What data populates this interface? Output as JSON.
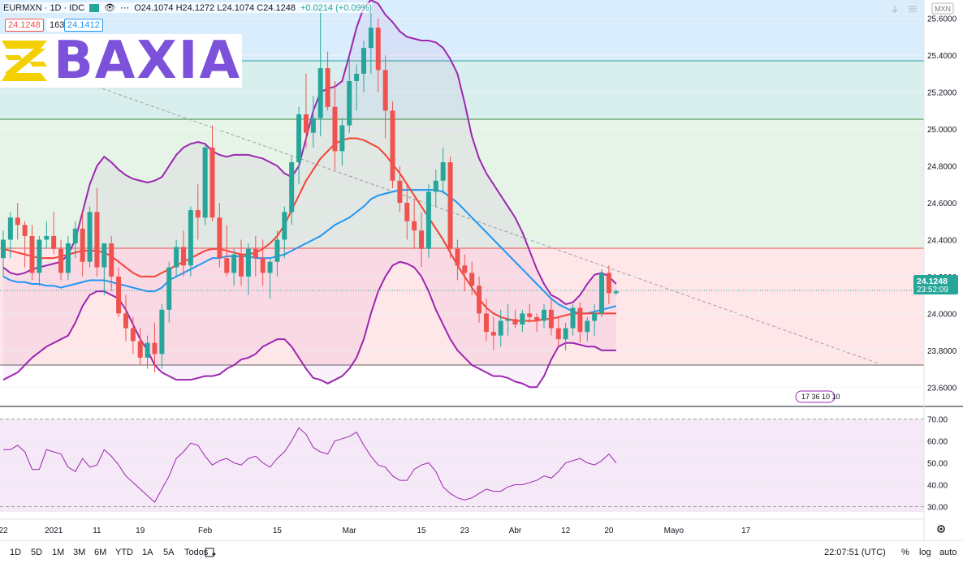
{
  "header": {
    "symbol": "EURMXN · 1D · IDC",
    "ohlc_text": "O24.1074  H24.1272  L24.1074  C24.1248",
    "change": "+0.0214 (+0.09%)",
    "bid": "24.1248",
    "spread": "163",
    "ask": "24.1412",
    "currency": "MXN"
  },
  "logo": {
    "text": "BAXIA",
    "color": "#7b52d9",
    "mark_color": "#f5d000"
  },
  "price_axis": {
    "last_price": "24.1248",
    "countdown": "23:52:09",
    "events": "17 36 10 10"
  },
  "toolbar": {
    "timeframes": [
      "1D",
      "5D",
      "1M",
      "3M",
      "6M",
      "YTD",
      "1A",
      "5A",
      "Todos"
    ],
    "clock": "22:07:51 (UTC)",
    "options": [
      "%",
      "log",
      "auto"
    ]
  },
  "colors": {
    "up": "#26a69a",
    "down": "#ef5350",
    "bollinger": "#9c27b0",
    "sma_fast": "#2196f3",
    "sma_slow": "#f44336",
    "rsi": "#9c27b0",
    "kumo_up": "#4caf50",
    "kumo_down": "#f44336"
  },
  "chart_data": [
    {
      "type": "candlestick",
      "title": "EURMXN · 1D · IDC",
      "ylim": [
        23.5,
        25.7
      ],
      "yticks": [
        "25.6000",
        "25.4000",
        "25.2000",
        "25.0000",
        "24.8000",
        "24.6000",
        "24.4000",
        "24.2000",
        "24.0000",
        "23.8000",
        "23.6000"
      ],
      "xticks": [
        {
          "label": "22",
          "i": 0
        },
        {
          "label": "2021",
          "i": 7
        },
        {
          "label": "11",
          "i": 13
        },
        {
          "label": "19",
          "i": 19
        },
        {
          "label": "Feb",
          "i": 28
        },
        {
          "label": "15",
          "i": 38
        },
        {
          "label": "Mar",
          "i": 48
        },
        {
          "label": "15",
          "i": 58
        },
        {
          "label": "23",
          "i": 64
        },
        {
          "label": "Abr",
          "i": 71
        },
        {
          "label": "12",
          "i": 78
        },
        {
          "label": "20",
          "i": 84
        },
        {
          "label": "Mayo",
          "i": 93
        },
        {
          "label": "17",
          "i": 103
        }
      ],
      "candles": [
        [
          24.3,
          24.45,
          24.2,
          24.4
        ],
        [
          24.4,
          24.55,
          24.3,
          24.52
        ],
        [
          24.52,
          24.6,
          24.4,
          24.48
        ],
        [
          24.48,
          24.5,
          24.25,
          24.42
        ],
        [
          24.42,
          24.48,
          24.18,
          24.22
        ],
        [
          24.22,
          24.42,
          24.15,
          24.4
        ],
        [
          24.4,
          24.5,
          24.35,
          24.42
        ],
        [
          24.42,
          24.55,
          24.32,
          24.35
        ],
        [
          24.35,
          24.4,
          24.18,
          24.22
        ],
        [
          24.22,
          24.42,
          24.18,
          24.38
        ],
        [
          24.38,
          24.5,
          24.3,
          24.46
        ],
        [
          24.46,
          24.55,
          24.2,
          24.28
        ],
        [
          24.28,
          24.58,
          24.25,
          24.55
        ],
        [
          24.55,
          24.68,
          24.2,
          24.25
        ],
        [
          24.25,
          24.38,
          24.1,
          24.38
        ],
        [
          24.38,
          24.42,
          24.12,
          24.2
        ],
        [
          24.2,
          24.25,
          23.98,
          24.0
        ],
        [
          24.0,
          24.1,
          23.85,
          23.92
        ],
        [
          23.92,
          23.98,
          23.78,
          23.85
        ],
        [
          23.85,
          23.92,
          23.72,
          23.76
        ],
        [
          23.76,
          23.88,
          23.7,
          23.84
        ],
        [
          23.84,
          23.95,
          23.68,
          23.78
        ],
        [
          23.78,
          24.05,
          23.7,
          24.02
        ],
        [
          24.02,
          24.28,
          23.95,
          24.25
        ],
        [
          24.25,
          24.4,
          24.2,
          24.36
        ],
        [
          24.36,
          24.45,
          24.2,
          24.26
        ],
        [
          24.26,
          24.58,
          24.2,
          24.56
        ],
        [
          24.56,
          24.7,
          24.4,
          24.52
        ],
        [
          24.52,
          24.92,
          24.48,
          24.9
        ],
        [
          24.9,
          25.02,
          24.5,
          24.52
        ],
        [
          24.52,
          24.6,
          24.25,
          24.3
        ],
        [
          24.3,
          24.48,
          24.2,
          24.22
        ],
        [
          24.22,
          24.35,
          24.15,
          24.32
        ],
        [
          24.32,
          24.4,
          24.15,
          24.2
        ],
        [
          24.2,
          24.38,
          24.1,
          24.35
        ],
        [
          24.35,
          24.42,
          24.2,
          24.3
        ],
        [
          24.3,
          24.4,
          24.15,
          24.22
        ],
        [
          24.22,
          24.3,
          24.08,
          24.28
        ],
        [
          24.28,
          24.45,
          24.2,
          24.4
        ],
        [
          24.4,
          24.58,
          24.3,
          24.55
        ],
        [
          24.55,
          24.85,
          24.48,
          24.82
        ],
        [
          24.82,
          25.12,
          24.7,
          25.08
        ],
        [
          25.08,
          25.3,
          24.9,
          24.98
        ],
        [
          24.98,
          25.18,
          24.9,
          25.06
        ],
        [
          25.06,
          25.64,
          24.96,
          25.33
        ],
        [
          25.33,
          25.42,
          25.1,
          25.12
        ],
        [
          25.12,
          25.26,
          24.78,
          24.88
        ],
        [
          24.88,
          25.06,
          24.8,
          25.02
        ],
        [
          25.02,
          25.4,
          24.98,
          25.26
        ],
        [
          25.26,
          25.35,
          25.1,
          25.3
        ],
        [
          25.3,
          25.48,
          25.2,
          25.44
        ],
        [
          25.44,
          25.66,
          25.3,
          25.55
        ],
        [
          25.55,
          25.6,
          25.2,
          25.32
        ],
        [
          25.32,
          25.4,
          24.95,
          25.1
        ],
        [
          25.1,
          25.15,
          24.68,
          24.72
        ],
        [
          24.72,
          24.8,
          24.55,
          24.6
        ],
        [
          24.6,
          24.7,
          24.4,
          24.5
        ],
        [
          24.5,
          24.62,
          24.35,
          24.45
        ],
        [
          24.45,
          24.55,
          24.25,
          24.35
        ],
        [
          24.35,
          24.7,
          24.3,
          24.66
        ],
        [
          24.66,
          24.78,
          24.58,
          24.72
        ],
        [
          24.72,
          24.9,
          24.65,
          24.82
        ],
        [
          24.82,
          24.85,
          24.3,
          24.35
        ],
        [
          24.35,
          24.4,
          24.18,
          24.26
        ],
        [
          24.26,
          24.32,
          24.12,
          24.22
        ],
        [
          24.22,
          24.28,
          24.1,
          24.15
        ],
        [
          24.15,
          24.2,
          23.95,
          24.0
        ],
        [
          24.0,
          24.08,
          23.85,
          23.9
        ],
        [
          23.9,
          23.98,
          23.8,
          23.88
        ],
        [
          23.88,
          24.02,
          23.82,
          23.96
        ],
        [
          23.96,
          24.05,
          23.88,
          23.97
        ],
        [
          23.97,
          24.02,
          23.92,
          23.94
        ],
        [
          23.94,
          24.02,
          23.9,
          24.0
        ],
        [
          24.0,
          24.05,
          23.95,
          23.98
        ],
        [
          23.98,
          24.0,
          23.9,
          23.96
        ],
        [
          23.96,
          24.05,
          23.92,
          24.02
        ],
        [
          24.02,
          24.08,
          23.88,
          23.92
        ],
        [
          23.92,
          23.98,
          23.82,
          23.86
        ],
        [
          23.86,
          23.95,
          23.8,
          23.92
        ],
        [
          23.92,
          24.05,
          23.88,
          24.03
        ],
        [
          24.03,
          24.06,
          23.84,
          23.9
        ],
        [
          23.9,
          23.98,
          23.85,
          23.96
        ],
        [
          23.96,
          24.05,
          23.88,
          24.0
        ],
        [
          24.0,
          24.24,
          23.98,
          24.22
        ],
        [
          24.22,
          24.26,
          24.05,
          24.11
        ],
        [
          24.11,
          24.13,
          24.1,
          24.12
        ]
      ],
      "series": [
        {
          "name": "bb_upper",
          "values": [
            24.25,
            24.22,
            24.21,
            24.22,
            24.24,
            24.25,
            24.26,
            24.27,
            24.28,
            24.32,
            24.4,
            24.55,
            24.7,
            24.8,
            24.85,
            24.82,
            24.78,
            24.75,
            24.73,
            24.72,
            24.71,
            24.72,
            24.74,
            24.8,
            24.86,
            24.9,
            24.92,
            24.93,
            24.92,
            24.88,
            24.86,
            24.85,
            24.86,
            24.86,
            24.86,
            24.85,
            24.84,
            24.82,
            24.8,
            24.76,
            24.74,
            24.8,
            24.95,
            25.1,
            25.2,
            25.22,
            25.23,
            25.26,
            25.4,
            25.55,
            25.66,
            25.7,
            25.68,
            25.62,
            25.58,
            25.53,
            25.5,
            25.49,
            25.48,
            25.48,
            25.47,
            25.44,
            25.38,
            25.3,
            25.14,
            24.96,
            24.84,
            24.76,
            24.7,
            24.64,
            24.58,
            24.52,
            24.44,
            24.34,
            24.24,
            24.16,
            24.1,
            24.08,
            24.05,
            24.06,
            24.1,
            24.16,
            24.21,
            24.22,
            24.2,
            24.16
          ]
        },
        {
          "name": "bb_lower",
          "values": [
            23.64,
            23.66,
            23.68,
            23.72,
            23.76,
            23.79,
            23.82,
            23.84,
            23.86,
            23.88,
            23.95,
            24.04,
            24.1,
            24.12,
            24.12,
            24.1,
            24.08,
            24.02,
            23.94,
            23.86,
            23.8,
            23.72,
            23.68,
            23.66,
            23.64,
            23.64,
            23.64,
            23.65,
            23.66,
            23.66,
            23.67,
            23.7,
            23.72,
            23.75,
            23.76,
            23.78,
            23.82,
            23.84,
            23.86,
            23.86,
            23.82,
            23.76,
            23.7,
            23.65,
            23.64,
            23.62,
            23.64,
            23.66,
            23.7,
            23.76,
            23.86,
            24.0,
            24.12,
            24.2,
            24.26,
            24.28,
            24.27,
            24.25,
            24.2,
            24.12,
            24.02,
            23.94,
            23.86,
            23.8,
            23.76,
            23.72,
            23.7,
            23.68,
            23.66,
            23.66,
            23.65,
            23.63,
            23.62,
            23.6,
            23.6,
            23.66,
            23.75,
            23.82,
            23.84,
            23.84,
            23.83,
            23.82,
            23.82,
            23.8,
            23.8,
            23.8
          ]
        },
        {
          "name": "sma_fast",
          "values": [
            24.2,
            24.18,
            24.17,
            24.17,
            24.16,
            24.16,
            24.15,
            24.15,
            24.14,
            24.15,
            24.16,
            24.17,
            24.18,
            24.18,
            24.18,
            24.17,
            24.16,
            24.15,
            24.14,
            24.13,
            24.12,
            24.12,
            24.14,
            24.18,
            24.2,
            24.22,
            24.24,
            24.26,
            24.28,
            24.3,
            24.3,
            24.31,
            24.31,
            24.31,
            24.31,
            24.3,
            24.3,
            24.3,
            24.31,
            24.32,
            24.34,
            24.36,
            24.38,
            24.4,
            24.42,
            24.45,
            24.48,
            24.5,
            24.52,
            24.55,
            24.58,
            24.62,
            24.64,
            24.65,
            24.66,
            24.67,
            24.67,
            24.67,
            24.67,
            24.67,
            24.67,
            24.66,
            24.63,
            24.6,
            24.56,
            24.52,
            24.48,
            24.44,
            24.4,
            24.36,
            24.32,
            24.28,
            24.24,
            24.2,
            24.16,
            24.12,
            24.08,
            24.05,
            24.03,
            24.01,
            24.0,
            24.0,
            24.01,
            24.02,
            24.03,
            24.04
          ]
        },
        {
          "name": "sma_slow",
          "values": [
            24.35,
            24.34,
            24.33,
            24.32,
            24.31,
            24.3,
            24.3,
            24.3,
            24.31,
            24.32,
            24.33,
            24.34,
            24.34,
            24.34,
            24.33,
            24.31,
            24.28,
            24.25,
            24.22,
            24.2,
            24.2,
            24.2,
            24.22,
            24.24,
            24.26,
            24.28,
            24.3,
            24.32,
            24.34,
            24.35,
            24.35,
            24.34,
            24.33,
            24.32,
            24.32,
            24.33,
            24.35,
            24.38,
            24.42,
            24.48,
            24.56,
            24.64,
            24.72,
            24.78,
            24.84,
            24.88,
            24.92,
            24.94,
            24.95,
            24.95,
            24.94,
            24.92,
            24.9,
            24.86,
            24.81,
            24.76,
            24.7,
            24.64,
            24.58,
            24.52,
            24.46,
            24.4,
            24.33,
            24.26,
            24.2,
            24.14,
            24.08,
            24.03,
            24.0,
            23.98,
            23.97,
            23.96,
            23.96,
            23.96,
            23.96,
            23.97,
            23.97,
            23.98,
            23.99,
            24.0,
            24.0,
            24.0,
            24.0,
            24.0,
            24.0,
            24.0
          ]
        },
        {
          "name": "rsi",
          "values": [
            56,
            56,
            58,
            55,
            47,
            47,
            56,
            55,
            54,
            48,
            46,
            52,
            48,
            49,
            56,
            53,
            49,
            44,
            41,
            38,
            35,
            32,
            38,
            44,
            52,
            55,
            59,
            58,
            53,
            49,
            51,
            52,
            50,
            49,
            52,
            53,
            50,
            48,
            52,
            55,
            60,
            66,
            63,
            57,
            55,
            54,
            60,
            61,
            62,
            64,
            58,
            53,
            49,
            48,
            44,
            42,
            42,
            47,
            49,
            50,
            46,
            39,
            36,
            34,
            33,
            34,
            36,
            38,
            37,
            37,
            39,
            40,
            40,
            41,
            42,
            44,
            43,
            46,
            50,
            51,
            52,
            50,
            49,
            51,
            54,
            50
          ]
        }
      ],
      "rsi_ylim": [
        25,
        75
      ],
      "rsi_levels": [
        "70.00",
        "60.00",
        "50.00",
        "40.00",
        "30.00"
      ]
    }
  ]
}
